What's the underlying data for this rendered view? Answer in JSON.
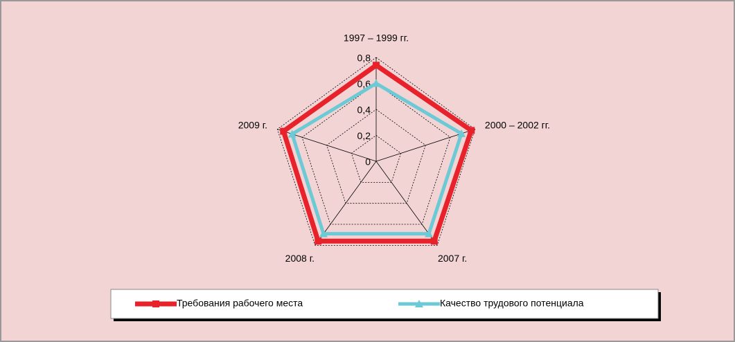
{
  "chart_data": {
    "type": "radar",
    "categories": [
      "1997 – 1999 гг.",
      "2000 – 2002 гг.",
      "2007 г.",
      "2008 г.",
      "2009 г."
    ],
    "series": [
      {
        "name": "Требования рабочего места",
        "color": "#e8222a",
        "marker": "square",
        "values": [
          0.74,
          0.77,
          0.76,
          0.76,
          0.75
        ]
      },
      {
        "name": "Качество трудового потенциала",
        "color": "#6ccad6",
        "marker": "triangle",
        "values": [
          0.6,
          0.69,
          0.69,
          0.69,
          0.68
        ]
      }
    ],
    "ylim": [
      0,
      0.8
    ],
    "yticks": [
      0,
      {
        "value": 0.2,
        "label": "0,2"
      },
      {
        "value": 0.4,
        "label": "0,4"
      },
      {
        "value": 0.6,
        "label": "0,6"
      },
      {
        "value": 0.8,
        "label": "0,8"
      }
    ],
    "grid": true,
    "legend": "bottom"
  }
}
